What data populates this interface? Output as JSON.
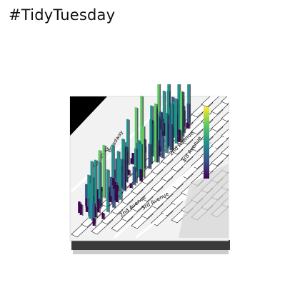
{
  "header": {
    "hashtag": "#TidyTuesday"
  },
  "map_labels": [
    "Broadway",
    "Broadway",
    "2nd Avenue",
    "2nd Avenue",
    "3rd Avenue",
    "3rd Avenue"
  ],
  "colors": {
    "background": "#ffffff",
    "map_white": "#ffffff",
    "map_block": "#e9e9e9",
    "water": "#000000",
    "box_base": "#3a3a3a",
    "viridis": [
      "#440154",
      "#3b528b",
      "#21918c",
      "#5ec962",
      "#fde725"
    ]
  }
}
